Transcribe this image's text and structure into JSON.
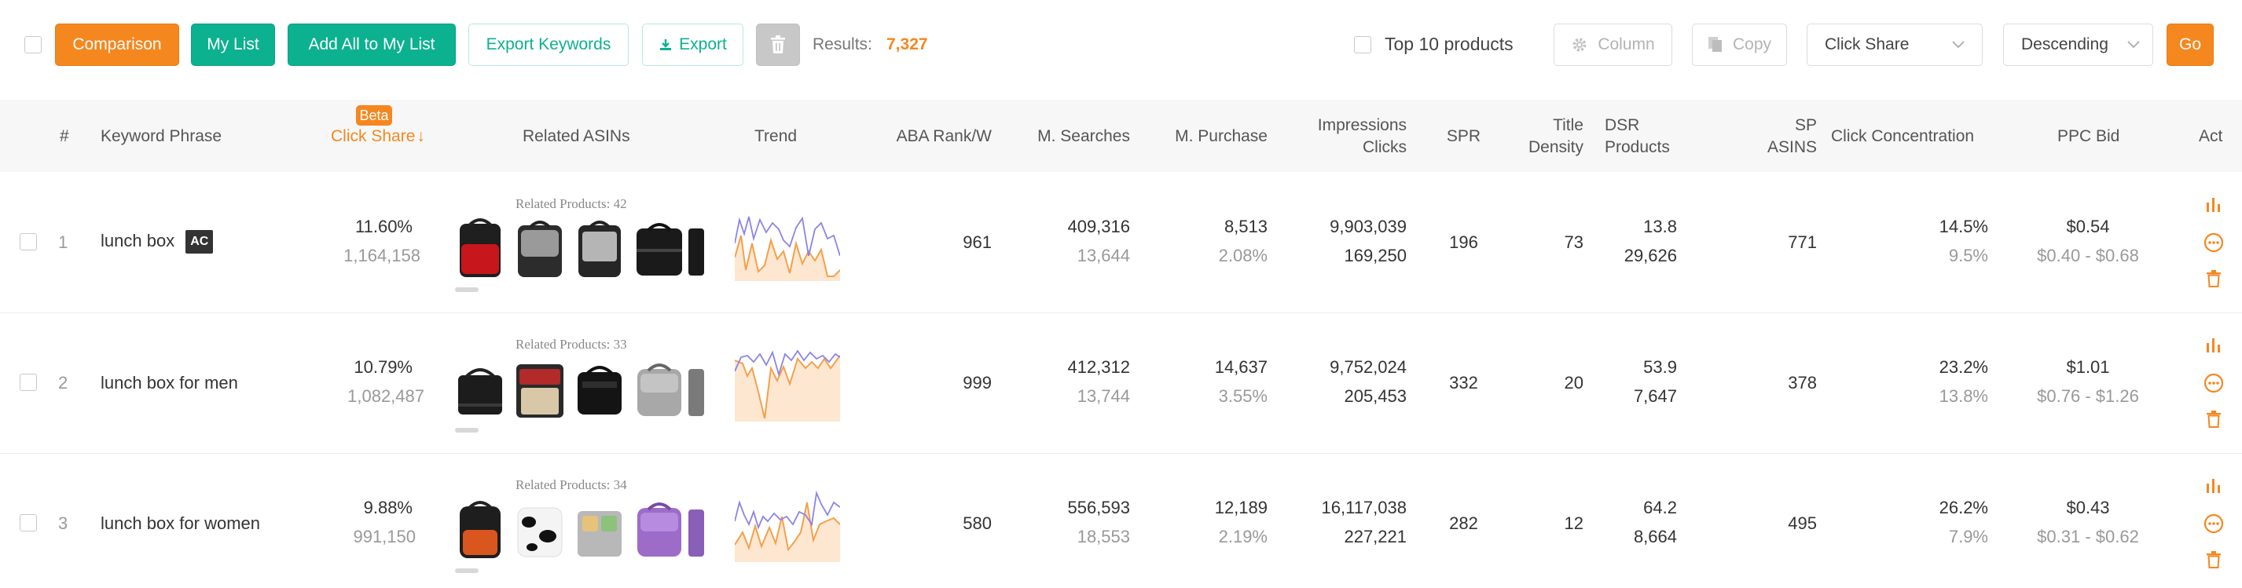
{
  "toolbar": {
    "comparison_label": "Comparison",
    "mylist_label": "My List",
    "add_all_label": "Add All to My List",
    "export_keywords_label": "Export Keywords",
    "export_label": "Export",
    "results_label": "Results:",
    "results_value": "7,327",
    "top10_label": "Top 10 products",
    "column_label": "Column",
    "copy_label": "Copy",
    "sort_field": "Click Share",
    "sort_order": "Descending",
    "go_label": "Go"
  },
  "columns": {
    "index": "#",
    "keyword": "Keyword Phrase",
    "beta": "Beta",
    "click_share": "Click Share",
    "click_share_arrow": "↓",
    "related_asins": "Related ASINs",
    "trend": "Trend",
    "aba_rank": "ABA Rank/W",
    "searches": "M. Searches",
    "purchase": "M. Purchase",
    "impressions": "Impressions",
    "clicks": "Clicks",
    "spr": "SPR",
    "title_1": "Title",
    "title_2": "Density",
    "dsr_1": "DSR",
    "dsr_2": "Products",
    "sp_1": "SP",
    "sp_2": "ASINS",
    "click_concentration": "Click Concentration",
    "ppc_bid": "PPC Bid",
    "actions": "Act"
  },
  "rows": [
    {
      "index": "1",
      "keyword": "lunch box",
      "badge": "AC",
      "click_share": "11.60%",
      "click_count": "1,164,158",
      "related": "Related Products: 42",
      "aba_rank": "961",
      "searches": "409,316",
      "searches_sub": "13,644",
      "purchase": "8,513",
      "purchase_rate": "2.08%",
      "impressions": "9,903,039",
      "clicks": "169,250",
      "spr": "196",
      "title_density": "73",
      "dsr": "13.8",
      "products": "29,626",
      "sp_asins": "771",
      "concentration": "14.5%",
      "concentration_sub": "9.5%",
      "ppc": "$0.54",
      "ppc_range": "$0.40 - $0.68"
    },
    {
      "index": "2",
      "keyword": "lunch box for men",
      "badge": "",
      "click_share": "10.79%",
      "click_count": "1,082,487",
      "related": "Related Products: 33",
      "aba_rank": "999",
      "searches": "412,312",
      "searches_sub": "13,744",
      "purchase": "14,637",
      "purchase_rate": "3.55%",
      "impressions": "9,752,024",
      "clicks": "205,453",
      "spr": "332",
      "title_density": "20",
      "dsr": "53.9",
      "products": "7,647",
      "sp_asins": "378",
      "concentration": "23.2%",
      "concentration_sub": "13.8%",
      "ppc": "$1.01",
      "ppc_range": "$0.76 - $1.26"
    },
    {
      "index": "3",
      "keyword": "lunch box for women",
      "badge": "",
      "click_share": "9.88%",
      "click_count": "991,150",
      "related": "Related Products: 34",
      "aba_rank": "580",
      "searches": "556,593",
      "searches_sub": "18,553",
      "purchase": "12,189",
      "purchase_rate": "2.19%",
      "impressions": "16,117,038",
      "clicks": "227,221",
      "spr": "282",
      "title_density": "12",
      "dsr": "64.2",
      "products": "8,664",
      "sp_asins": "495",
      "concentration": "26.2%",
      "concentration_sub": "7.9%",
      "ppc": "$0.43",
      "ppc_range": "$0.31 - $0.62"
    }
  ],
  "icons": {
    "bar_chart": "bar-chart-icon",
    "more": "more-icon",
    "delete": "trash-icon",
    "export": "download-icon",
    "column": "gear-icon",
    "copy": "copy-icon",
    "chevron": "chevron-down-icon"
  },
  "colors": {
    "accent_orange": "#f5871f",
    "accent_green": "#0cb18f",
    "trend_blue": "#8b84e8",
    "trend_orange": "#f5a04a"
  }
}
